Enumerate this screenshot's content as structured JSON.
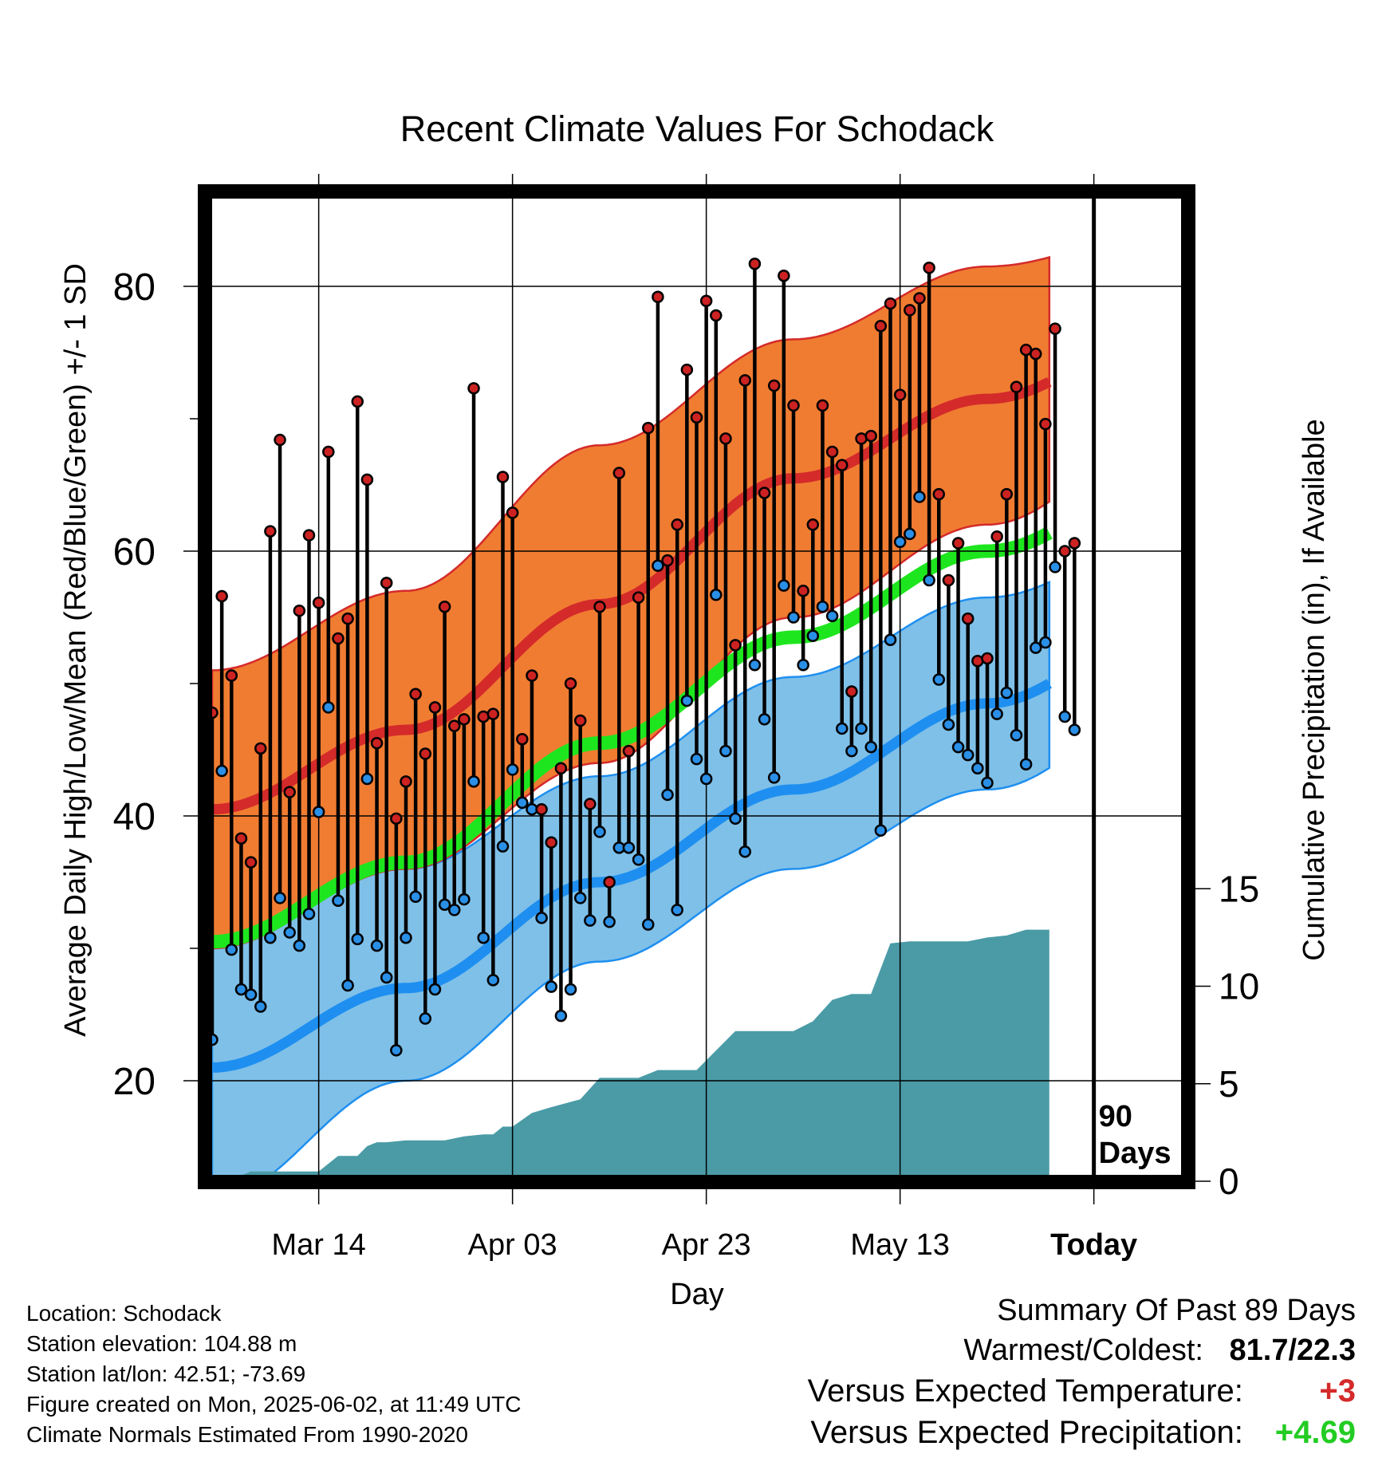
{
  "chart_data": {
    "type": "line",
    "title": "Recent Climate Values For Schodack",
    "xlabel": "Day",
    "ylabel": "Average Daily High/Low/Mean (Red/Blue/Green) +/- 1 SD",
    "y2label": "Cumulative Precipitation (in), If Available",
    "ylim": [
      13,
      86
    ],
    "y_ticks": [
      "20",
      "40",
      "60",
      "80"
    ],
    "y2lim": [
      0,
      29
    ],
    "y2_ticks": [
      "0",
      "5",
      "10",
      "15"
    ],
    "x_tick_labels": [
      "Mar 14",
      "Apr 03",
      "Apr 23",
      "May 13",
      "Today"
    ],
    "x_tick_days": [
      11,
      31,
      51,
      71,
      91
    ],
    "grid": true,
    "today_marker": "90\nDays",
    "today_label_lines": [
      "90",
      "Days"
    ],
    "colors": {
      "high_band": "#f07c32",
      "high_mean": "#d42a2a",
      "low_band": "#7fc0e8",
      "low_mean": "#1e8ff0",
      "mean_line": "#1ee61e",
      "precip": "#4a9ba6",
      "high_point": "#cc2222",
      "low_point": "#2a8fe6"
    },
    "normals": {
      "days": [
        0,
        20,
        40,
        60,
        80,
        100
      ],
      "high_mean": [
        40.5,
        46.5,
        56,
        65.5,
        71.5,
        77
      ],
      "high_sd_upper": [
        51,
        57,
        68,
        76,
        81.5,
        84.5
      ],
      "high_sd_lower": [
        30,
        36,
        44,
        55,
        62,
        69.5
      ],
      "low_mean": [
        21,
        27,
        35,
        42,
        48.5,
        55
      ],
      "low_sd_upper": [
        30.5,
        36,
        43,
        50.5,
        56.5,
        61.5
      ],
      "low_sd_lower": [
        11,
        20,
        29,
        36,
        42,
        49
      ],
      "daily_mean": [
        30.5,
        36.5,
        45.5,
        53.5,
        60,
        66
      ]
    },
    "daily_high": [
      47.8,
      56.6,
      50.6,
      38.3,
      36.5,
      45.1,
      61.5,
      68.4,
      41.8,
      55.5,
      61.2,
      56.1,
      67.5,
      53.4,
      54.9,
      71.3,
      65.4,
      45.5,
      57.6,
      39.8,
      42.6,
      49.2,
      44.7,
      48.2,
      55.8,
      46.8,
      47.3,
      72.3,
      47.5,
      47.7,
      65.6,
      62.9,
      45.8,
      50.6,
      40.5,
      38.0,
      43.6,
      50.0,
      47.2,
      40.9,
      55.8,
      35.0,
      65.9,
      44.9,
      56.5,
      69.3,
      79.2,
      59.3,
      62.0,
      73.7,
      70.1,
      78.9,
      77.8,
      68.5,
      52.9,
      72.9,
      81.7,
      64.4,
      72.5,
      80.8,
      71.0,
      57.0,
      62.0,
      71.0,
      67.5,
      66.5,
      49.4,
      68.5,
      68.7,
      77.0,
      78.7,
      71.8,
      78.2,
      79.1,
      81.4,
      64.3,
      57.8,
      60.6,
      54.9,
      51.7,
      51.9,
      61.1,
      64.3,
      72.4,
      75.2,
      74.9,
      69.6,
      76.8,
      60.0,
      60.6
    ],
    "daily_low": [
      23.1,
      43.4,
      29.9,
      26.9,
      26.5,
      25.6,
      30.8,
      33.8,
      31.2,
      30.2,
      32.6,
      40.3,
      48.2,
      33.6,
      27.2,
      30.7,
      42.8,
      30.2,
      27.8,
      22.3,
      30.8,
      33.9,
      24.7,
      26.9,
      33.3,
      32.9,
      33.7,
      42.6,
      30.8,
      27.6,
      37.7,
      43.5,
      41.0,
      40.5,
      32.3,
      27.1,
      24.9,
      26.9,
      33.8,
      32.1,
      38.8,
      32.0,
      37.6,
      37.6,
      36.7,
      31.8,
      58.9,
      41.6,
      32.9,
      48.7,
      44.3,
      42.8,
      56.7,
      44.9,
      39.8,
      37.3,
      51.4,
      47.3,
      42.9,
      57.4,
      55.0,
      51.4,
      53.6,
      55.8,
      55.1,
      46.6,
      44.9,
      46.6,
      45.2,
      38.9,
      53.3,
      60.7,
      61.3,
      64.1,
      57.8,
      50.3,
      46.9,
      45.2,
      44.6,
      43.6,
      42.5,
      47.7,
      49.3,
      46.1,
      43.9,
      52.7,
      53.1,
      58.8,
      47.5,
      46.5
    ],
    "cumulative_precip": {
      "days": [
        0,
        2,
        4,
        6,
        10,
        11,
        12,
        13,
        14,
        15,
        16,
        17,
        18,
        20,
        24,
        26,
        28,
        29,
        30,
        31,
        33,
        35,
        38,
        40,
        44,
        46,
        48,
        50,
        54,
        56,
        60,
        62,
        64,
        66,
        68,
        70,
        72,
        74,
        76,
        78,
        80,
        82,
        84,
        86,
        88,
        89,
        92,
        100
      ],
      "values": [
        0,
        0.1,
        0.5,
        0.5,
        0.5,
        0.5,
        0.9,
        1.3,
        1.3,
        1.3,
        1.8,
        2.0,
        2.0,
        2.1,
        2.1,
        2.3,
        2.4,
        2.4,
        2.8,
        2.8,
        3.5,
        3.8,
        4.2,
        5.3,
        5.3,
        5.7,
        5.7,
        5.7,
        7.7,
        7.7,
        7.7,
        8.2,
        9.3,
        9.6,
        9.6,
        12.2,
        12.3,
        12.3,
        12.3,
        12.3,
        12.5,
        12.6,
        12.9,
        12.9,
        12.9,
        12.9,
        14.7,
        14.7
      ]
    }
  },
  "footer": {
    "location": "Location: Schodack",
    "elevation": "Station elevation: 104.88 m",
    "latlon": "Station lat/lon: 42.51; -73.69",
    "created": "Figure created on Mon, 2025-06-02, at 11:49 UTC",
    "normals": "Climate Normals Estimated From 1990-2020"
  },
  "summary": {
    "heading": "Summary Of Past 89 Days",
    "warmest_coldest_label": "Warmest/Coldest:",
    "warmest_coldest_value": "81.7/22.3",
    "temp_label": "Versus Expected Temperature:",
    "temp_value": "+3",
    "temp_color": "#d42a2a",
    "precip_label": "Versus Expected Precipitation:",
    "precip_value": "+4.69",
    "precip_color": "#22cc22"
  }
}
